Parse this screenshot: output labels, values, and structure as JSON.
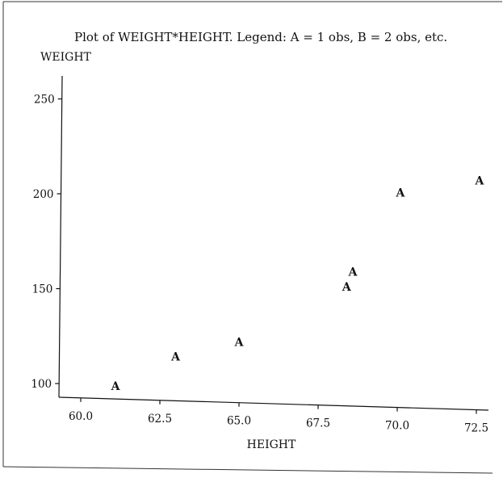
{
  "chart_data": {
    "type": "scatter",
    "title": "Plot of WEIGHT*HEIGHT.  Legend: A = 1 obs, B = 2 obs, etc.",
    "xlabel": "HEIGHT",
    "ylabel": "WEIGHT",
    "xlim": [
      60,
      72.5
    ],
    "ylim": [
      100,
      250
    ],
    "x_ticks": [
      "60.0",
      "62.5",
      "65.0",
      "67.5",
      "70.0",
      "72.5"
    ],
    "y_ticks": [
      "100",
      "150",
      "200",
      "250"
    ],
    "marker": "A",
    "points": [
      {
        "x": 61.1,
        "y": 99
      },
      {
        "x": 63.0,
        "y": 115
      },
      {
        "x": 65.0,
        "y": 123
      },
      {
        "x": 68.4,
        "y": 153
      },
      {
        "x": 68.6,
        "y": 161
      },
      {
        "x": 70.1,
        "y": 203
      },
      {
        "x": 72.6,
        "y": 210
      }
    ],
    "grid": false,
    "legend": "in title"
  }
}
